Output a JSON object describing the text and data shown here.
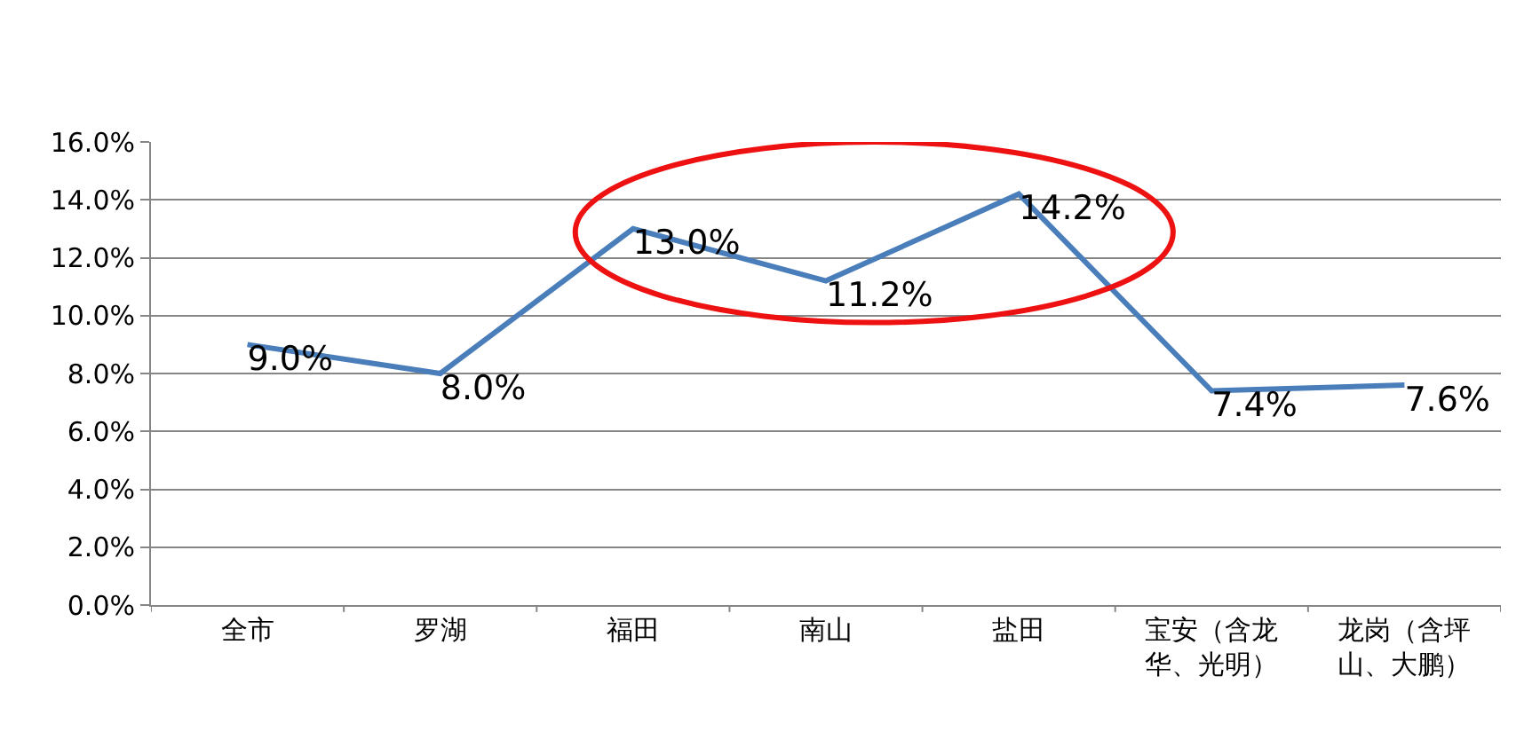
{
  "chart_data": {
    "type": "line",
    "categories": [
      "全市",
      "罗湖",
      "福田",
      "南山",
      "盐田",
      "宝安（含龙华、光明）",
      "龙岗（含坪山、大鹏）"
    ],
    "series": [
      {
        "color": "#4a7ebb",
        "values": [
          9.0,
          8.0,
          13.0,
          11.2,
          14.2,
          7.4,
          7.6
        ],
        "value_labels": [
          "9.0%",
          "8.0%",
          "13.0%",
          "11.2%",
          "14.2%",
          "7.4%",
          "7.6%"
        ]
      }
    ],
    "ylim": [
      0,
      16
    ],
    "yticks": [
      {
        "value": 0,
        "label": "0.0%"
      },
      {
        "value": 2,
        "label": "2.0%"
      },
      {
        "value": 4,
        "label": "4.0%"
      },
      {
        "value": 6,
        "label": "6.0%"
      },
      {
        "value": 8,
        "label": "8.0%"
      },
      {
        "value": 10,
        "label": "10.0%"
      },
      {
        "value": 12,
        "label": "12.0%"
      },
      {
        "value": 14,
        "label": "14.0%"
      },
      {
        "value": 16,
        "label": "16.0%"
      }
    ],
    "grid": "y",
    "marker": "none",
    "line_style": "solid"
  }
}
